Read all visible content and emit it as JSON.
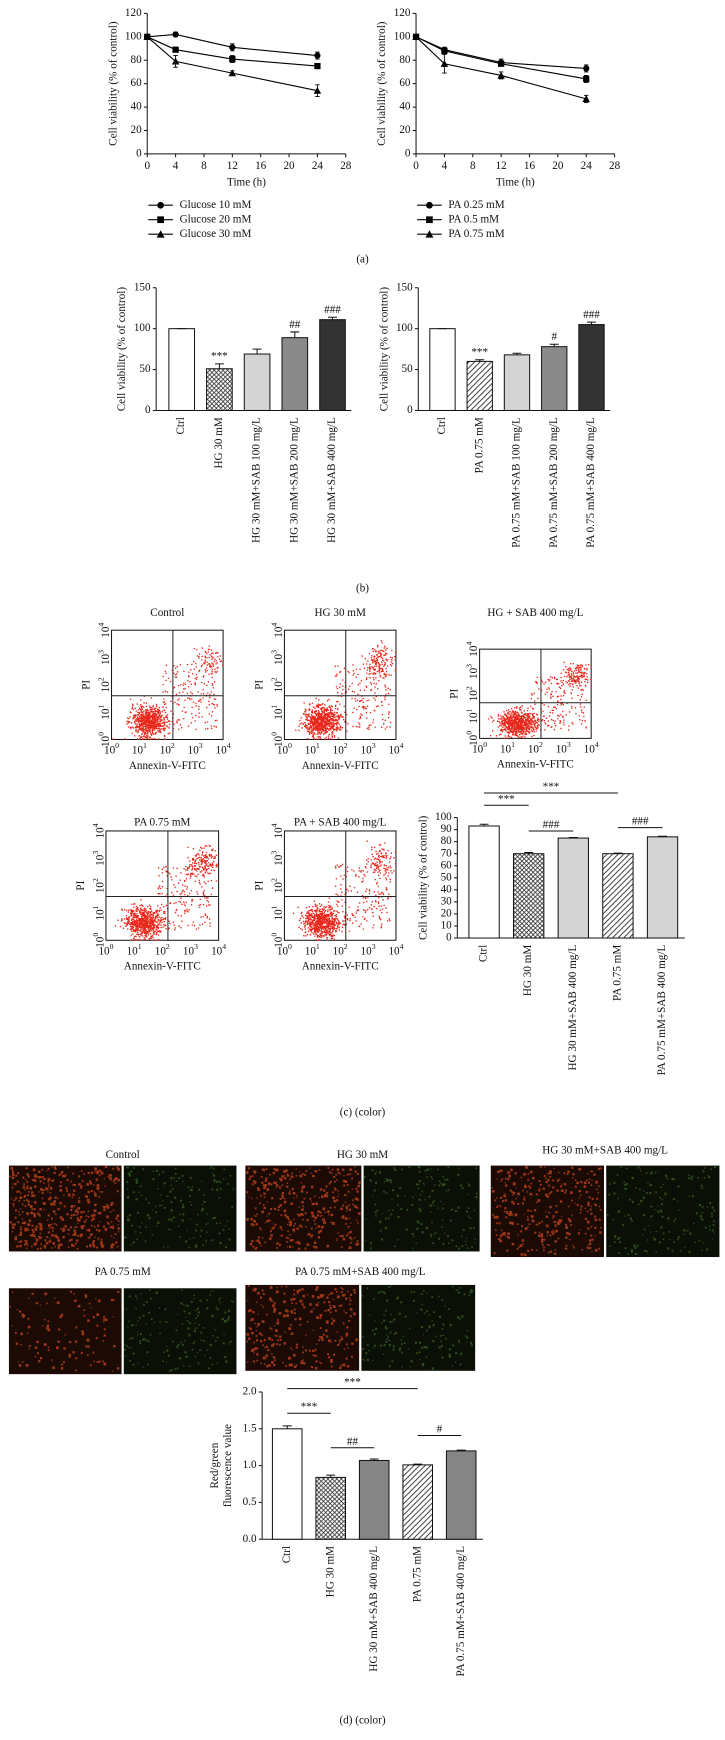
{
  "chart_data": [
    {
      "type": "line",
      "xlabel": "Time (h)",
      "ylabel": "Cell viability (% of control)",
      "color": "#000000",
      "x": [
        0,
        4,
        12,
        24
      ],
      "xlim": [
        0,
        28
      ],
      "xticks": [
        0,
        4,
        8,
        12,
        16,
        20,
        24,
        28
      ],
      "ylim": [
        0,
        120
      ],
      "yticks": [
        0,
        20,
        40,
        60,
        80,
        100,
        120
      ],
      "series": [
        {
          "name": "Glucose 10 mM",
          "marker": "circle",
          "values": [
            100,
            102,
            91,
            84
          ],
          "errors": [
            0,
            2,
            3,
            3
          ]
        },
        {
          "name": "Glucose 20 mM",
          "marker": "square",
          "values": [
            100,
            89,
            81,
            75
          ],
          "errors": [
            0,
            2,
            3,
            2
          ]
        },
        {
          "name": "Glucose 30 mM",
          "marker": "triangle",
          "values": [
            100,
            79,
            69,
            54
          ],
          "errors": [
            0,
            5,
            2,
            5
          ]
        }
      ]
    },
    {
      "type": "line",
      "xlabel": "Time (h)",
      "ylabel": "Cell viability (% of control)",
      "color": "#000000",
      "x": [
        0,
        4,
        12,
        24
      ],
      "xlim": [
        0,
        28
      ],
      "xticks": [
        0,
        4,
        8,
        12,
        16,
        20,
        24,
        28
      ],
      "ylim": [
        0,
        120
      ],
      "yticks": [
        0,
        20,
        40,
        60,
        80,
        100,
        120
      ],
      "series": [
        {
          "name": "PA 0.25 mM",
          "marker": "circle",
          "values": [
            100,
            89,
            78,
            73
          ],
          "errors": [
            0,
            2,
            3,
            3
          ]
        },
        {
          "name": "PA 0.5 mM",
          "marker": "square",
          "values": [
            100,
            88,
            77,
            64
          ],
          "errors": [
            0,
            2,
            2,
            3
          ]
        },
        {
          "name": "PA 0.75 mM",
          "marker": "triangle",
          "values": [
            100,
            77,
            67,
            47
          ],
          "errors": [
            0,
            8,
            3,
            3
          ]
        }
      ]
    },
    {
      "type": "bar",
      "ylabel": "Cell viability (% of control)",
      "categories": [
        "Ctrl",
        "HG 30 mM",
        "HG 30 mM+SAB 100 mg/L",
        "HG 30 mM+SAB 200 mg/L",
        "HG 30 mM+SAB 400 mg/L"
      ],
      "values": [
        100,
        51,
        69,
        89,
        111
      ],
      "errors": [
        0,
        6,
        6,
        7,
        3
      ],
      "colors": [
        "#ffffff",
        "#ffffff",
        "#d4d4d4",
        "#8a8a8a",
        "#333333"
      ],
      "hatch": [
        null,
        "cross",
        null,
        null,
        null
      ],
      "ylim": [
        0,
        150
      ],
      "yticks": [
        0,
        50,
        100,
        150
      ],
      "annotations": [
        {
          "category": "HG 30 mM",
          "text": "***"
        },
        {
          "category": "HG 30 mM+SAB 200 mg/L",
          "text": "##"
        },
        {
          "category": "HG 30 mM+SAB 400 mg/L",
          "text": "###"
        }
      ]
    },
    {
      "type": "bar",
      "ylabel": "Cell viability (% of control)",
      "categories": [
        "Ctrl",
        "PA 0.75 mM",
        "PA 0.75 mM+SAB 100 mg/L",
        "PA 0.75 mM+SAB 200 mg/L",
        "PA 0.75 mM+SAB 400 mg/L"
      ],
      "values": [
        100,
        60,
        68,
        78,
        105
      ],
      "errors": [
        0,
        2,
        2,
        3,
        3
      ],
      "colors": [
        "#ffffff",
        "#ffffff",
        "#d4d4d4",
        "#8a8a8a",
        "#333333"
      ],
      "hatch": [
        null,
        "diagonal",
        null,
        null,
        null
      ],
      "ylim": [
        0,
        150
      ],
      "yticks": [
        0,
        50,
        100,
        150
      ],
      "annotations": [
        {
          "category": "PA 0.75 mM",
          "text": "***"
        },
        {
          "category": "PA 0.75 mM+SAB 200 mg/L",
          "text": "#"
        },
        {
          "category": "PA 0.75 mM+SAB 400 mg/L",
          "text": "###"
        }
      ]
    },
    {
      "type": "bar",
      "ylabel": "Cell viability (% of control)",
      "categories": [
        "Ctrl",
        "HG 30 mM",
        "HG 30 mM+SAB 400 mg/L",
        "PA 0.75 mM",
        "PA 0.75 mM+SAB 400 mg/L"
      ],
      "values": [
        93,
        70,
        83,
        70,
        84
      ],
      "errors": [
        1.5,
        1,
        0.5,
        0.5,
        0.5
      ],
      "colors": [
        "#ffffff",
        "#ffffff",
        "#d4d4d4",
        "#ffffff",
        "#d4d4d4"
      ],
      "hatch": [
        null,
        "cross",
        null,
        "diagonal",
        null
      ],
      "ylim": [
        0,
        100
      ],
      "yticks": [
        0,
        10,
        20,
        30,
        40,
        50,
        60,
        70,
        80,
        90,
        100
      ],
      "brackets": [
        {
          "from": "Ctrl",
          "to": "PA 0.75 mM",
          "text": "***"
        },
        {
          "from": "Ctrl",
          "to": "HG 30 mM",
          "text": "***"
        },
        {
          "from": "HG 30 mM",
          "to": "HG 30 mM+SAB 400 mg/L",
          "text": "###"
        },
        {
          "from": "PA 0.75 mM",
          "to": "PA 0.75 mM+SAB 400 mg/L",
          "text": "###"
        }
      ]
    },
    {
      "type": "bar",
      "ylabel": [
        "Red/green",
        "fluorescence value"
      ],
      "categories": [
        "Ctrl",
        "HG 30 mM",
        "HG 30 mM+SAB 400 mg/L",
        "PA 0.75 mM",
        "PA 0.75 mM+SAB 400 mg/L"
      ],
      "values": [
        1.5,
        0.84,
        1.07,
        1.01,
        1.2
      ],
      "errors": [
        0.04,
        0.03,
        0.02,
        0.01,
        0.01
      ],
      "colors": [
        "#ffffff",
        "#ffffff",
        "#858585",
        "#ffffff",
        "#858585"
      ],
      "hatch": [
        null,
        "cross",
        null,
        "diagonal",
        null
      ],
      "ylim": [
        0,
        2.0
      ],
      "yticks": [
        {
          "value": 0,
          "label": "0.0"
        },
        {
          "value": 0.5,
          "label": "0.5"
        },
        {
          "value": 1,
          "label": "1.0"
        },
        {
          "value": 1.5,
          "label": "1.5"
        },
        {
          "value": 2,
          "label": "2.0"
        }
      ],
      "brackets": [
        {
          "from": "Ctrl",
          "to": "PA 0.75 mM",
          "text": "***"
        },
        {
          "from": "Ctrl",
          "to": "HG 30 mM",
          "text": "***"
        },
        {
          "from": "HG 30 mM",
          "to": "HG 30 mM+SAB 400 mg/L",
          "text": "##"
        },
        {
          "from": "PA 0.75 mM",
          "to": "PA 0.75 mM+SAB 400 mg/L",
          "text": "#"
        }
      ]
    }
  ],
  "flow": {
    "xlabel": "Annexin-V-FITC",
    "ylabel": "PI",
    "base": "10",
    "exponents": [
      0,
      1,
      2,
      3,
      4
    ],
    "panels": [
      {
        "title": "Control"
      },
      {
        "title": "HG 30 mM"
      },
      {
        "title": "HG + SAB 400 mg/L"
      },
      {
        "title": "PA 0.75 mM"
      },
      {
        "title": "PA + SAB 400 mg/L"
      }
    ]
  },
  "fluorescence": {
    "panels": [
      {
        "title": "Control"
      },
      {
        "title": "HG 30 mM"
      },
      {
        "title": "HG 30 mM+SAB 400 mg/L"
      },
      {
        "title": "PA 0.75 mM"
      },
      {
        "title": "PA 0.75 mM+SAB 400 mg/L"
      }
    ]
  },
  "captions": [
    "(a)",
    "(b)",
    "(c) (color)",
    "(d) (color)"
  ]
}
